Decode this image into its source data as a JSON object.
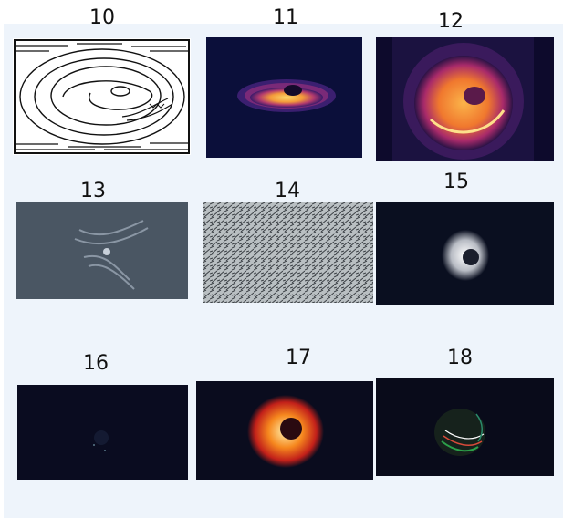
{
  "figure": {
    "panels": [
      {
        "label": "10",
        "style": "contour-lines"
      },
      {
        "label": "11",
        "style": "inferno-density"
      },
      {
        "label": "12",
        "style": "inferno-ring"
      },
      {
        "label": "13",
        "style": "grey-fft"
      },
      {
        "label": "14",
        "style": "noise-texture"
      },
      {
        "label": "15",
        "style": "grey-ring"
      },
      {
        "label": "16",
        "style": "faint-dark"
      },
      {
        "label": "17",
        "style": "hot-ring"
      },
      {
        "label": "18",
        "style": "rgb-streaks"
      }
    ],
    "colors": {
      "background": "#eef4fb",
      "dark_navy": "#0b0f2e",
      "inferno_orange": "#f5a23a",
      "hot_red": "#e0301e"
    }
  }
}
